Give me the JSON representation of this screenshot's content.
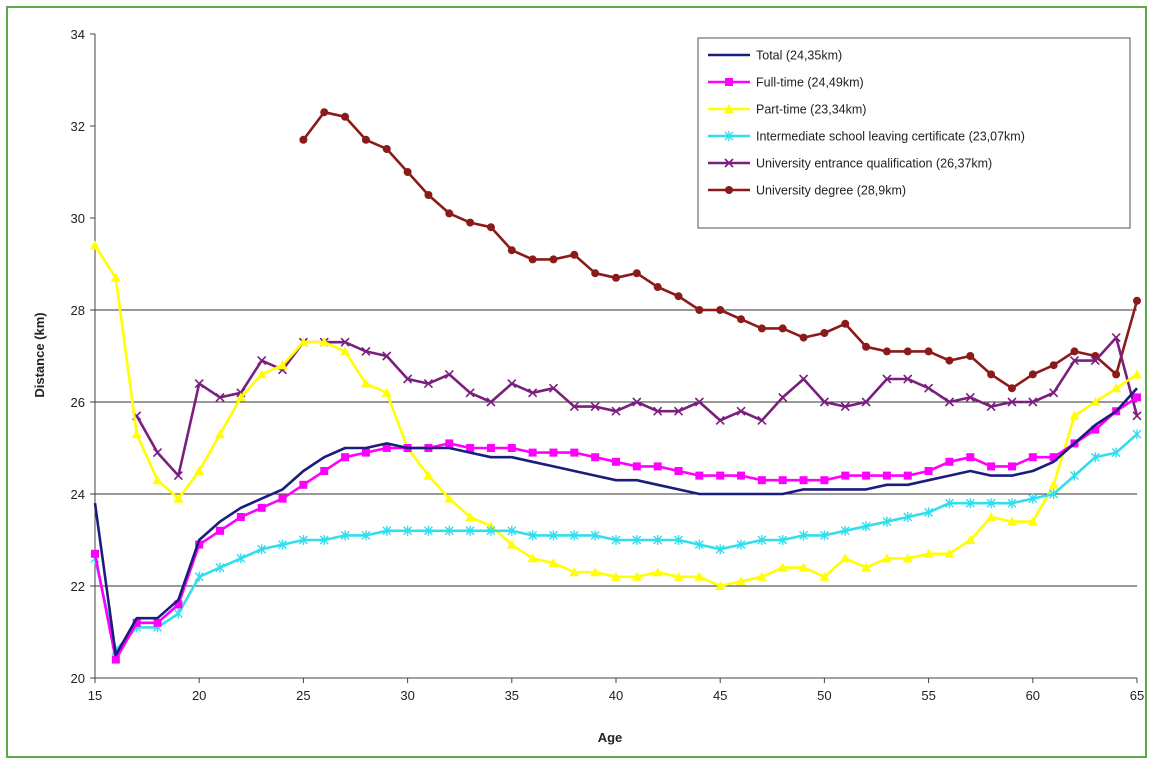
{
  "chart_data": {
    "type": "line",
    "xlabel": "Age",
    "ylabel": "Distance (km)",
    "xlim": [
      15,
      65
    ],
    "ylim": [
      20,
      34
    ],
    "xticks": [
      "15",
      "20",
      "25",
      "30",
      "35",
      "40",
      "45",
      "50",
      "55",
      "60",
      "65"
    ],
    "yticks": [
      "20",
      "22",
      "24",
      "26",
      "28",
      "30",
      "32",
      "34"
    ],
    "grid": "horizontal at 22, 24, 26, 28",
    "legend_position": "top-right",
    "series": [
      {
        "name": "Total (24,35km)",
        "color": "#1c1c7c",
        "marker": "none",
        "x": [
          15,
          16,
          17,
          18,
          19,
          20,
          21,
          22,
          23,
          24,
          25,
          26,
          27,
          28,
          29,
          30,
          31,
          32,
          33,
          34,
          35,
          36,
          37,
          38,
          39,
          40,
          41,
          42,
          43,
          44,
          45,
          46,
          47,
          48,
          49,
          50,
          51,
          52,
          53,
          54,
          55,
          56,
          57,
          58,
          59,
          60,
          61,
          62,
          63,
          64,
          65
        ],
        "y": [
          23.8,
          20.5,
          21.3,
          21.3,
          21.7,
          23.0,
          23.4,
          23.7,
          23.9,
          24.1,
          24.5,
          24.8,
          25.0,
          25.0,
          25.1,
          25.0,
          25.0,
          25.0,
          24.9,
          24.8,
          24.8,
          24.7,
          24.6,
          24.5,
          24.4,
          24.3,
          24.3,
          24.2,
          24.1,
          24.0,
          24.0,
          24.0,
          24.0,
          24.0,
          24.1,
          24.1,
          24.1,
          24.1,
          24.2,
          24.2,
          24.3,
          24.4,
          24.5,
          24.4,
          24.4,
          24.5,
          24.7,
          25.1,
          25.5,
          25.8,
          26.3
        ]
      },
      {
        "name": "Full-time (24,49km)",
        "color": "#ff00ff",
        "marker": "square",
        "x": [
          15,
          16,
          17,
          18,
          19,
          20,
          21,
          22,
          23,
          24,
          25,
          26,
          27,
          28,
          29,
          30,
          31,
          32,
          33,
          34,
          35,
          36,
          37,
          38,
          39,
          40,
          41,
          42,
          43,
          44,
          45,
          46,
          47,
          48,
          49,
          50,
          51,
          52,
          53,
          54,
          55,
          56,
          57,
          58,
          59,
          60,
          61,
          62,
          63,
          64,
          65
        ],
        "y": [
          22.7,
          20.4,
          21.2,
          21.2,
          21.6,
          22.9,
          23.2,
          23.5,
          23.7,
          23.9,
          24.2,
          24.5,
          24.8,
          24.9,
          25.0,
          25.0,
          25.0,
          25.1,
          25.0,
          25.0,
          25.0,
          24.9,
          24.9,
          24.9,
          24.8,
          24.7,
          24.6,
          24.6,
          24.5,
          24.4,
          24.4,
          24.4,
          24.3,
          24.3,
          24.3,
          24.3,
          24.4,
          24.4,
          24.4,
          24.4,
          24.5,
          24.7,
          24.8,
          24.6,
          24.6,
          24.8,
          24.8,
          25.1,
          25.4,
          25.8,
          26.1
        ]
      },
      {
        "name": "Part-time (23,34km)",
        "color": "#ffff00",
        "marker": "triangle",
        "x": [
          15,
          16,
          17,
          18,
          19,
          20,
          21,
          22,
          23,
          24,
          25,
          26,
          27,
          28,
          29,
          30,
          31,
          32,
          33,
          34,
          35,
          36,
          37,
          38,
          39,
          40,
          41,
          42,
          43,
          44,
          45,
          46,
          47,
          48,
          49,
          50,
          51,
          52,
          53,
          54,
          55,
          56,
          57,
          58,
          59,
          60,
          61,
          62,
          63,
          64,
          65
        ],
        "y": [
          29.4,
          28.7,
          25.3,
          24.3,
          23.9,
          24.5,
          25.3,
          26.1,
          26.6,
          26.8,
          27.3,
          27.3,
          27.1,
          26.4,
          26.2,
          25.0,
          24.4,
          23.9,
          23.5,
          23.3,
          22.9,
          22.6,
          22.5,
          22.3,
          22.3,
          22.2,
          22.2,
          22.3,
          22.2,
          22.2,
          22.0,
          22.1,
          22.2,
          22.4,
          22.4,
          22.2,
          22.6,
          22.4,
          22.6,
          22.6,
          22.7,
          22.7,
          23.0,
          23.5,
          23.4,
          23.4,
          24.2,
          25.7,
          26.0,
          26.3,
          26.6
        ]
      },
      {
        "name": "Intermediate school leaving certificate (23,07km)",
        "color": "#33ddee",
        "marker": "star",
        "x": [
          15,
          16,
          17,
          18,
          19,
          20,
          21,
          22,
          23,
          24,
          25,
          26,
          27,
          28,
          29,
          30,
          31,
          32,
          33,
          34,
          35,
          36,
          37,
          38,
          39,
          40,
          41,
          42,
          43,
          44,
          45,
          46,
          47,
          48,
          49,
          50,
          51,
          52,
          53,
          54,
          55,
          56,
          57,
          58,
          59,
          60,
          61,
          62,
          63,
          64,
          65
        ],
        "y": [
          22.6,
          20.6,
          21.1,
          21.1,
          21.4,
          22.2,
          22.4,
          22.6,
          22.8,
          22.9,
          23.0,
          23.0,
          23.1,
          23.1,
          23.2,
          23.2,
          23.2,
          23.2,
          23.2,
          23.2,
          23.2,
          23.1,
          23.1,
          23.1,
          23.1,
          23.0,
          23.0,
          23.0,
          23.0,
          22.9,
          22.8,
          22.9,
          23.0,
          23.0,
          23.1,
          23.1,
          23.2,
          23.3,
          23.4,
          23.5,
          23.6,
          23.8,
          23.8,
          23.8,
          23.8,
          23.9,
          24.0,
          24.4,
          24.8,
          24.9,
          25.3
        ]
      },
      {
        "name": "University entrance qualification (26,37km)",
        "color": "#7a1f7e",
        "marker": "x",
        "x": [
          17,
          18,
          19,
          20,
          21,
          22,
          23,
          24,
          25,
          26,
          27,
          28,
          29,
          30,
          31,
          32,
          33,
          34,
          35,
          36,
          37,
          38,
          39,
          40,
          41,
          42,
          43,
          44,
          45,
          46,
          47,
          48,
          49,
          50,
          51,
          52,
          53,
          54,
          55,
          56,
          57,
          58,
          59,
          60,
          61,
          62,
          63,
          64,
          65
        ],
        "y": [
          25.7,
          24.9,
          24.4,
          26.4,
          26.1,
          26.2,
          26.9,
          26.7,
          27.3,
          27.3,
          27.3,
          27.1,
          27.0,
          26.5,
          26.4,
          26.6,
          26.2,
          26.0,
          26.4,
          26.2,
          26.3,
          25.9,
          25.9,
          25.8,
          26.0,
          25.8,
          25.8,
          26.0,
          25.6,
          25.8,
          25.6,
          26.1,
          26.5,
          26.0,
          25.9,
          26.0,
          26.5,
          26.5,
          26.3,
          26.0,
          26.1,
          25.9,
          26.0,
          26.0,
          26.2,
          26.9,
          26.9,
          27.4,
          25.7
        ]
      },
      {
        "name": "University degree (28,9km)",
        "color": "#8b1a1a",
        "marker": "circle",
        "x": [
          25,
          26,
          27,
          28,
          29,
          30,
          31,
          32,
          33,
          34,
          35,
          36,
          37,
          38,
          39,
          40,
          41,
          42,
          43,
          44,
          45,
          46,
          47,
          48,
          49,
          50,
          51,
          52,
          53,
          54,
          55,
          56,
          57,
          58,
          59,
          60,
          61,
          62,
          63,
          64,
          65
        ],
        "y": [
          31.7,
          32.3,
          32.2,
          31.7,
          31.5,
          31.0,
          30.5,
          30.1,
          29.9,
          29.8,
          29.3,
          29.1,
          29.1,
          29.2,
          28.8,
          28.7,
          28.8,
          28.5,
          28.3,
          28.0,
          28.0,
          27.8,
          27.6,
          27.6,
          27.4,
          27.5,
          27.7,
          27.2,
          27.1,
          27.1,
          27.1,
          26.9,
          27.0,
          26.6,
          26.3,
          26.6,
          26.8,
          27.1,
          27.0,
          26.6,
          28.2
        ]
      }
    ]
  }
}
